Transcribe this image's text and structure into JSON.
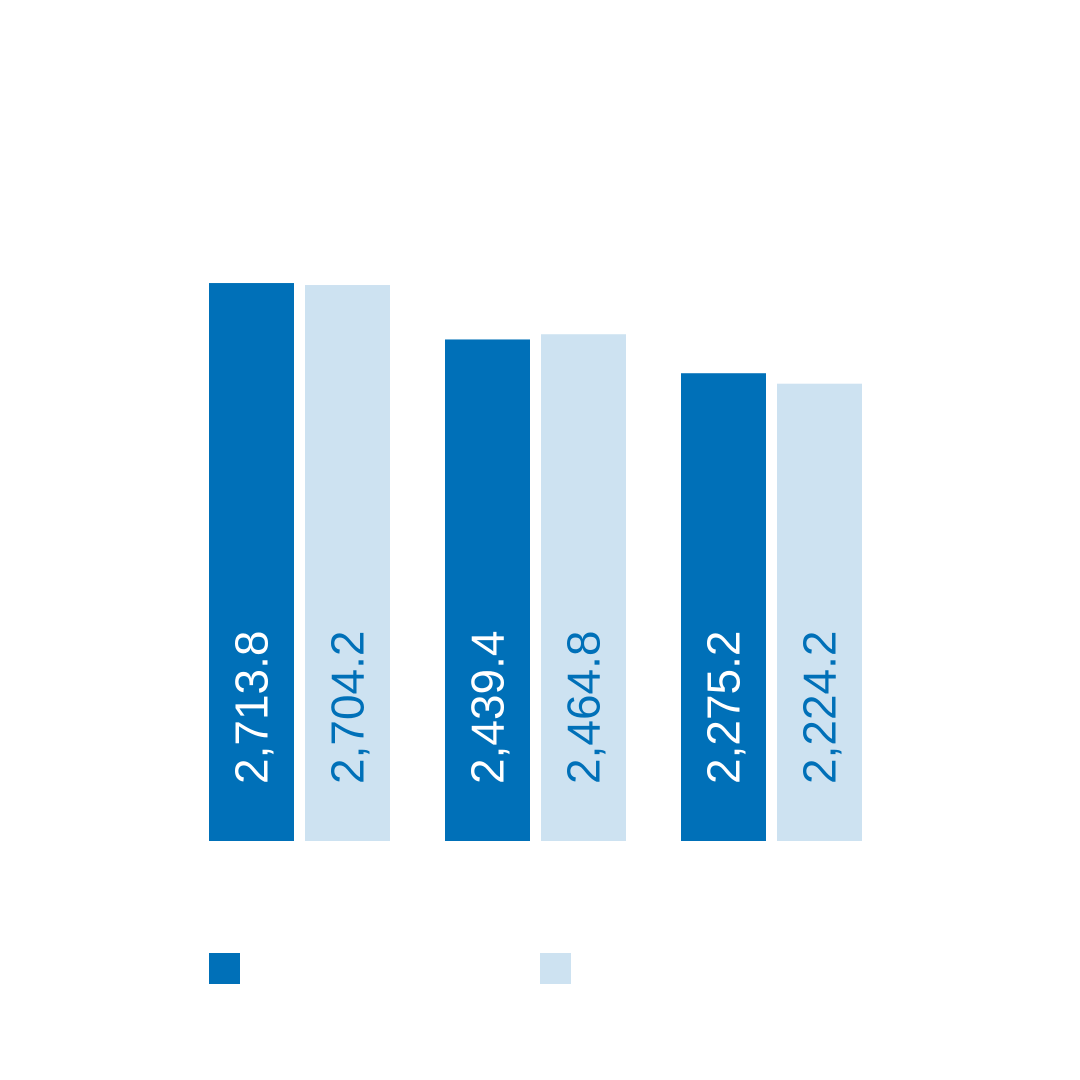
{
  "chart_data": {
    "type": "bar",
    "title": "",
    "xlabel": "",
    "ylabel": "",
    "categories": [
      "",
      "",
      ""
    ],
    "series": [
      {
        "color": "#0070b8",
        "label_color": "#ffffff",
        "values": [
          2713.8,
          2439.4,
          2275.2
        ],
        "labels": [
          "2,713.8",
          "2,439.4",
          "2,275.2"
        ]
      },
      {
        "color": "#cde2f1",
        "label_color": "#0070b8",
        "values": [
          2704.2,
          2464.8,
          2224.2
        ],
        "labels": [
          "2,704.2",
          "2,464.8",
          "2,224.2"
        ]
      }
    ],
    "grid": false,
    "legend_placement": "bottom-left"
  }
}
